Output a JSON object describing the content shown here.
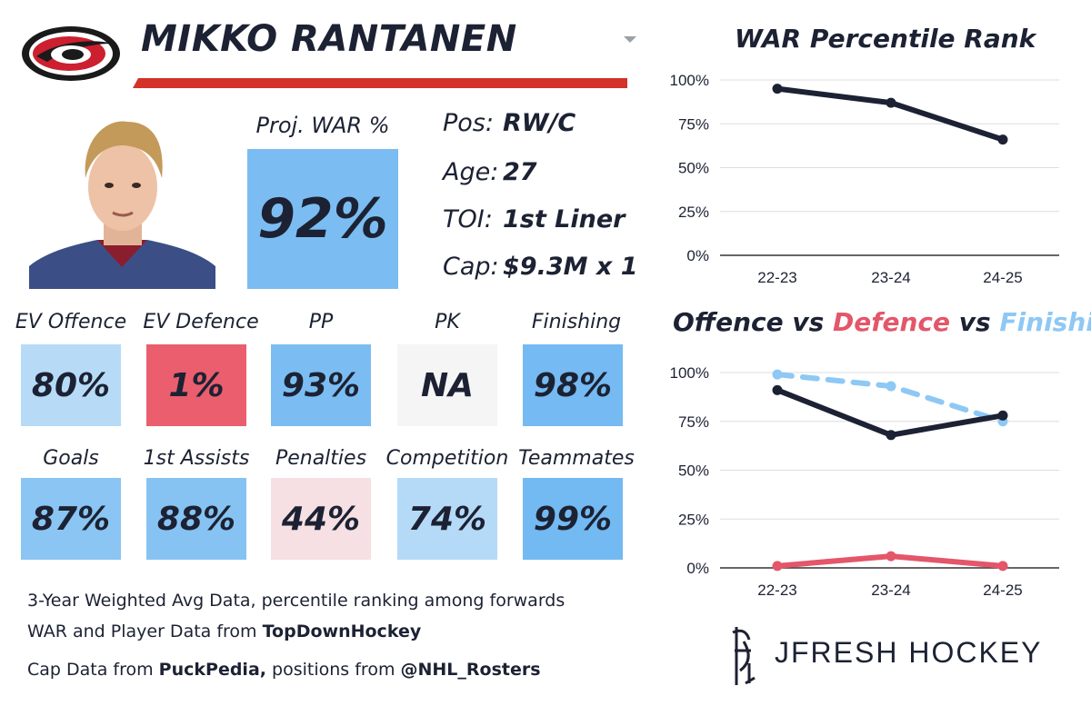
{
  "player": {
    "name": "MIKKO RANTANEN",
    "team_logo": "hurricanes-logo",
    "proj_war_label": "Proj. WAR %",
    "proj_war_value": "92%",
    "info": [
      {
        "label": "Pos:",
        "value": "RW/C"
      },
      {
        "label": "Age:",
        "value": "27"
      },
      {
        "label": "TOI:",
        "value": "1st Liner"
      },
      {
        "label": "Cap:",
        "value": "$9.3M x 1"
      }
    ]
  },
  "stats_row1": [
    {
      "label": "EV Offence",
      "value": "80%",
      "color": "#b7dbf7"
    },
    {
      "label": "EV Defence",
      "value": "1%",
      "color": "#ea5e6e"
    },
    {
      "label": "PP",
      "value": "93%",
      "color": "#7bbdf2"
    },
    {
      "label": "PK",
      "value": "NA",
      "color": "#f6f5f6"
    },
    {
      "label": "Finishing",
      "value": "98%",
      "color": "#75baf2"
    }
  ],
  "stats_row2": [
    {
      "label": "Goals",
      "value": "87%",
      "color": "#8ac5f3"
    },
    {
      "label": "1st Assists",
      "value": "88%",
      "color": "#86c3f3"
    },
    {
      "label": "Penalties",
      "value": "44%",
      "color": "#f6e0e3"
    },
    {
      "label": "Competition",
      "value": "74%",
      "color": "#b5daf7"
    },
    {
      "label": "Teammates",
      "value": "99%",
      "color": "#73b9f2"
    }
  ],
  "footer": {
    "line1": "3-Year Weighted Avg Data, percentile ranking among forwards",
    "line2_prefix": "WAR and Player Data from ",
    "line2_bold": "TopDownHockey",
    "line3_prefix": "Cap Data from ",
    "line3_bold1": "PuckPedia,",
    "line3_mid": " positions from ",
    "line3_bold2": "@NHL_Rosters"
  },
  "brand": {
    "name": "JFRESH HOCKEY",
    "icon": "jfresh-hockey-logo"
  },
  "colors": {
    "navy": "#1c2233",
    "red": "#e4566a",
    "light_blue": "#8ec8f5",
    "underline_red": "#d3312a"
  },
  "chart_data": [
    {
      "type": "line",
      "title": "WAR Percentile Rank",
      "categories": [
        "22-23",
        "23-24",
        "24-25"
      ],
      "series": [
        {
          "values": [
            95,
            87,
            66
          ],
          "color": "#1c2233",
          "style": "solid"
        }
      ],
      "ylim": [
        0,
        100
      ],
      "yticks": [
        "0%",
        "25%",
        "50%",
        "75%",
        "100%"
      ],
      "grid": true
    },
    {
      "type": "line",
      "title_parts": [
        {
          "text": "Offence",
          "color": "#1c2233"
        },
        {
          "text": " vs ",
          "color": "#1c2233"
        },
        {
          "text": "Defence",
          "color": "#e4566a"
        },
        {
          "text": " vs ",
          "color": "#1c2233"
        },
        {
          "text": "Finishing",
          "color": "#8ec8f5"
        }
      ],
      "categories": [
        "22-23",
        "23-24",
        "24-25"
      ],
      "series": [
        {
          "values": [
            99,
            93,
            75
          ],
          "color": "#8ec8f5",
          "style": "dashed"
        },
        {
          "values": [
            91,
            68,
            78
          ],
          "color": "#1c2233",
          "style": "solid"
        },
        {
          "values": [
            1,
            6,
            1
          ],
          "color": "#e4566a",
          "style": "solid"
        }
      ],
      "ylim": [
        0,
        100
      ],
      "yticks": [
        "0%",
        "25%",
        "50%",
        "75%",
        "100%"
      ],
      "grid": true
    }
  ]
}
